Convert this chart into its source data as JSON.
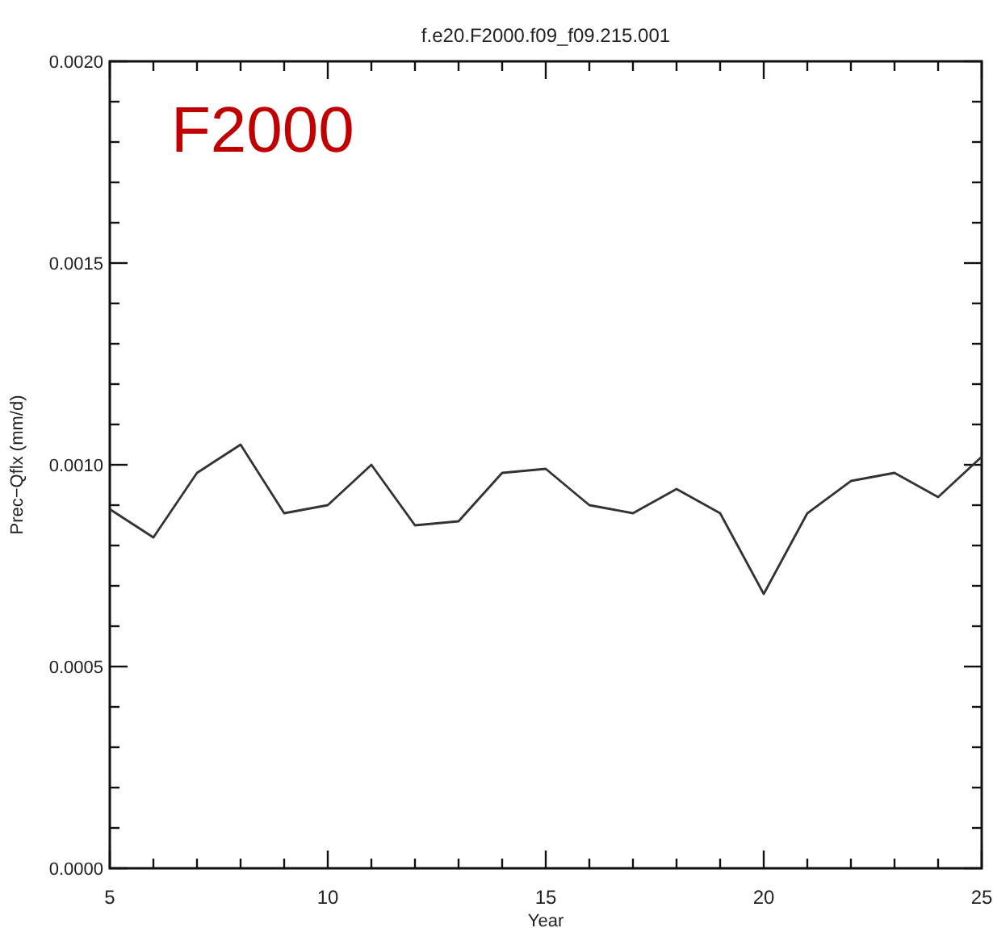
{
  "chart_data": {
    "type": "line",
    "title": "f.e20.F2000.f09_f09.215.001",
    "xlabel": "Year",
    "ylabel": "Prec−Qflx (mm/d)",
    "annotations": [
      "F2000"
    ],
    "x": [
      5,
      6,
      7,
      8,
      9,
      10,
      11,
      12,
      13,
      14,
      15,
      16,
      17,
      18,
      19,
      20,
      21,
      22,
      23,
      24,
      25
    ],
    "series": [
      {
        "color": "#333333",
        "values": [
          0.00089,
          0.00082,
          0.00098,
          0.00105,
          0.00088,
          0.0009,
          0.001,
          0.00085,
          0.00086,
          0.00098,
          0.00099,
          0.0009,
          0.00088,
          0.00094,
          0.00088,
          0.00068,
          0.00088,
          0.00096,
          0.00098,
          0.00092,
          0.00102
        ]
      }
    ],
    "xlim": [
      5,
      25
    ],
    "xticks": [
      5,
      {
        "value": 6,
        "label": null
      },
      {
        "value": 7,
        "label": null
      },
      {
        "value": 8,
        "label": null
      },
      {
        "value": 9,
        "label": null
      },
      10,
      {
        "value": 11,
        "label": null
      },
      {
        "value": 12,
        "label": null
      },
      {
        "value": 13,
        "label": null
      },
      {
        "value": 14,
        "label": null
      },
      15,
      {
        "value": 16,
        "label": null
      },
      {
        "value": 17,
        "label": null
      },
      {
        "value": 18,
        "label": null
      },
      {
        "value": 19,
        "label": null
      },
      20,
      {
        "value": 21,
        "label": null
      },
      {
        "value": 22,
        "label": null
      },
      {
        "value": 23,
        "label": null
      },
      {
        "value": 24,
        "label": null
      },
      25
    ],
    "ylim": [
      0,
      0.002
    ],
    "yticks": [
      {
        "value": 0,
        "label": "0.0000"
      },
      {
        "value": 0.0001,
        "label": null
      },
      {
        "value": 0.0002,
        "label": null
      },
      {
        "value": 0.0003,
        "label": null
      },
      {
        "value": 0.0004,
        "label": null
      },
      {
        "value": 0.0005,
        "label": "0.0005"
      },
      {
        "value": 0.0006,
        "label": null
      },
      {
        "value": 0.0007,
        "label": null
      },
      {
        "value": 0.0008,
        "label": null
      },
      {
        "value": 0.0009,
        "label": null
      },
      {
        "value": 0.001,
        "label": "0.0010"
      },
      {
        "value": 0.0011,
        "label": null
      },
      {
        "value": 0.0012,
        "label": null
      },
      {
        "value": 0.0013,
        "label": null
      },
      {
        "value": 0.0014,
        "label": null
      },
      {
        "value": 0.0015,
        "label": "0.0015"
      },
      {
        "value": 0.0016,
        "label": null
      },
      {
        "value": 0.0017,
        "label": null
      },
      {
        "value": 0.0018,
        "label": null
      },
      {
        "value": 0.0019,
        "label": null
      },
      {
        "value": 0.002,
        "label": "0.0020"
      }
    ],
    "grid": false,
    "marker": "none",
    "line_style": "solid"
  }
}
